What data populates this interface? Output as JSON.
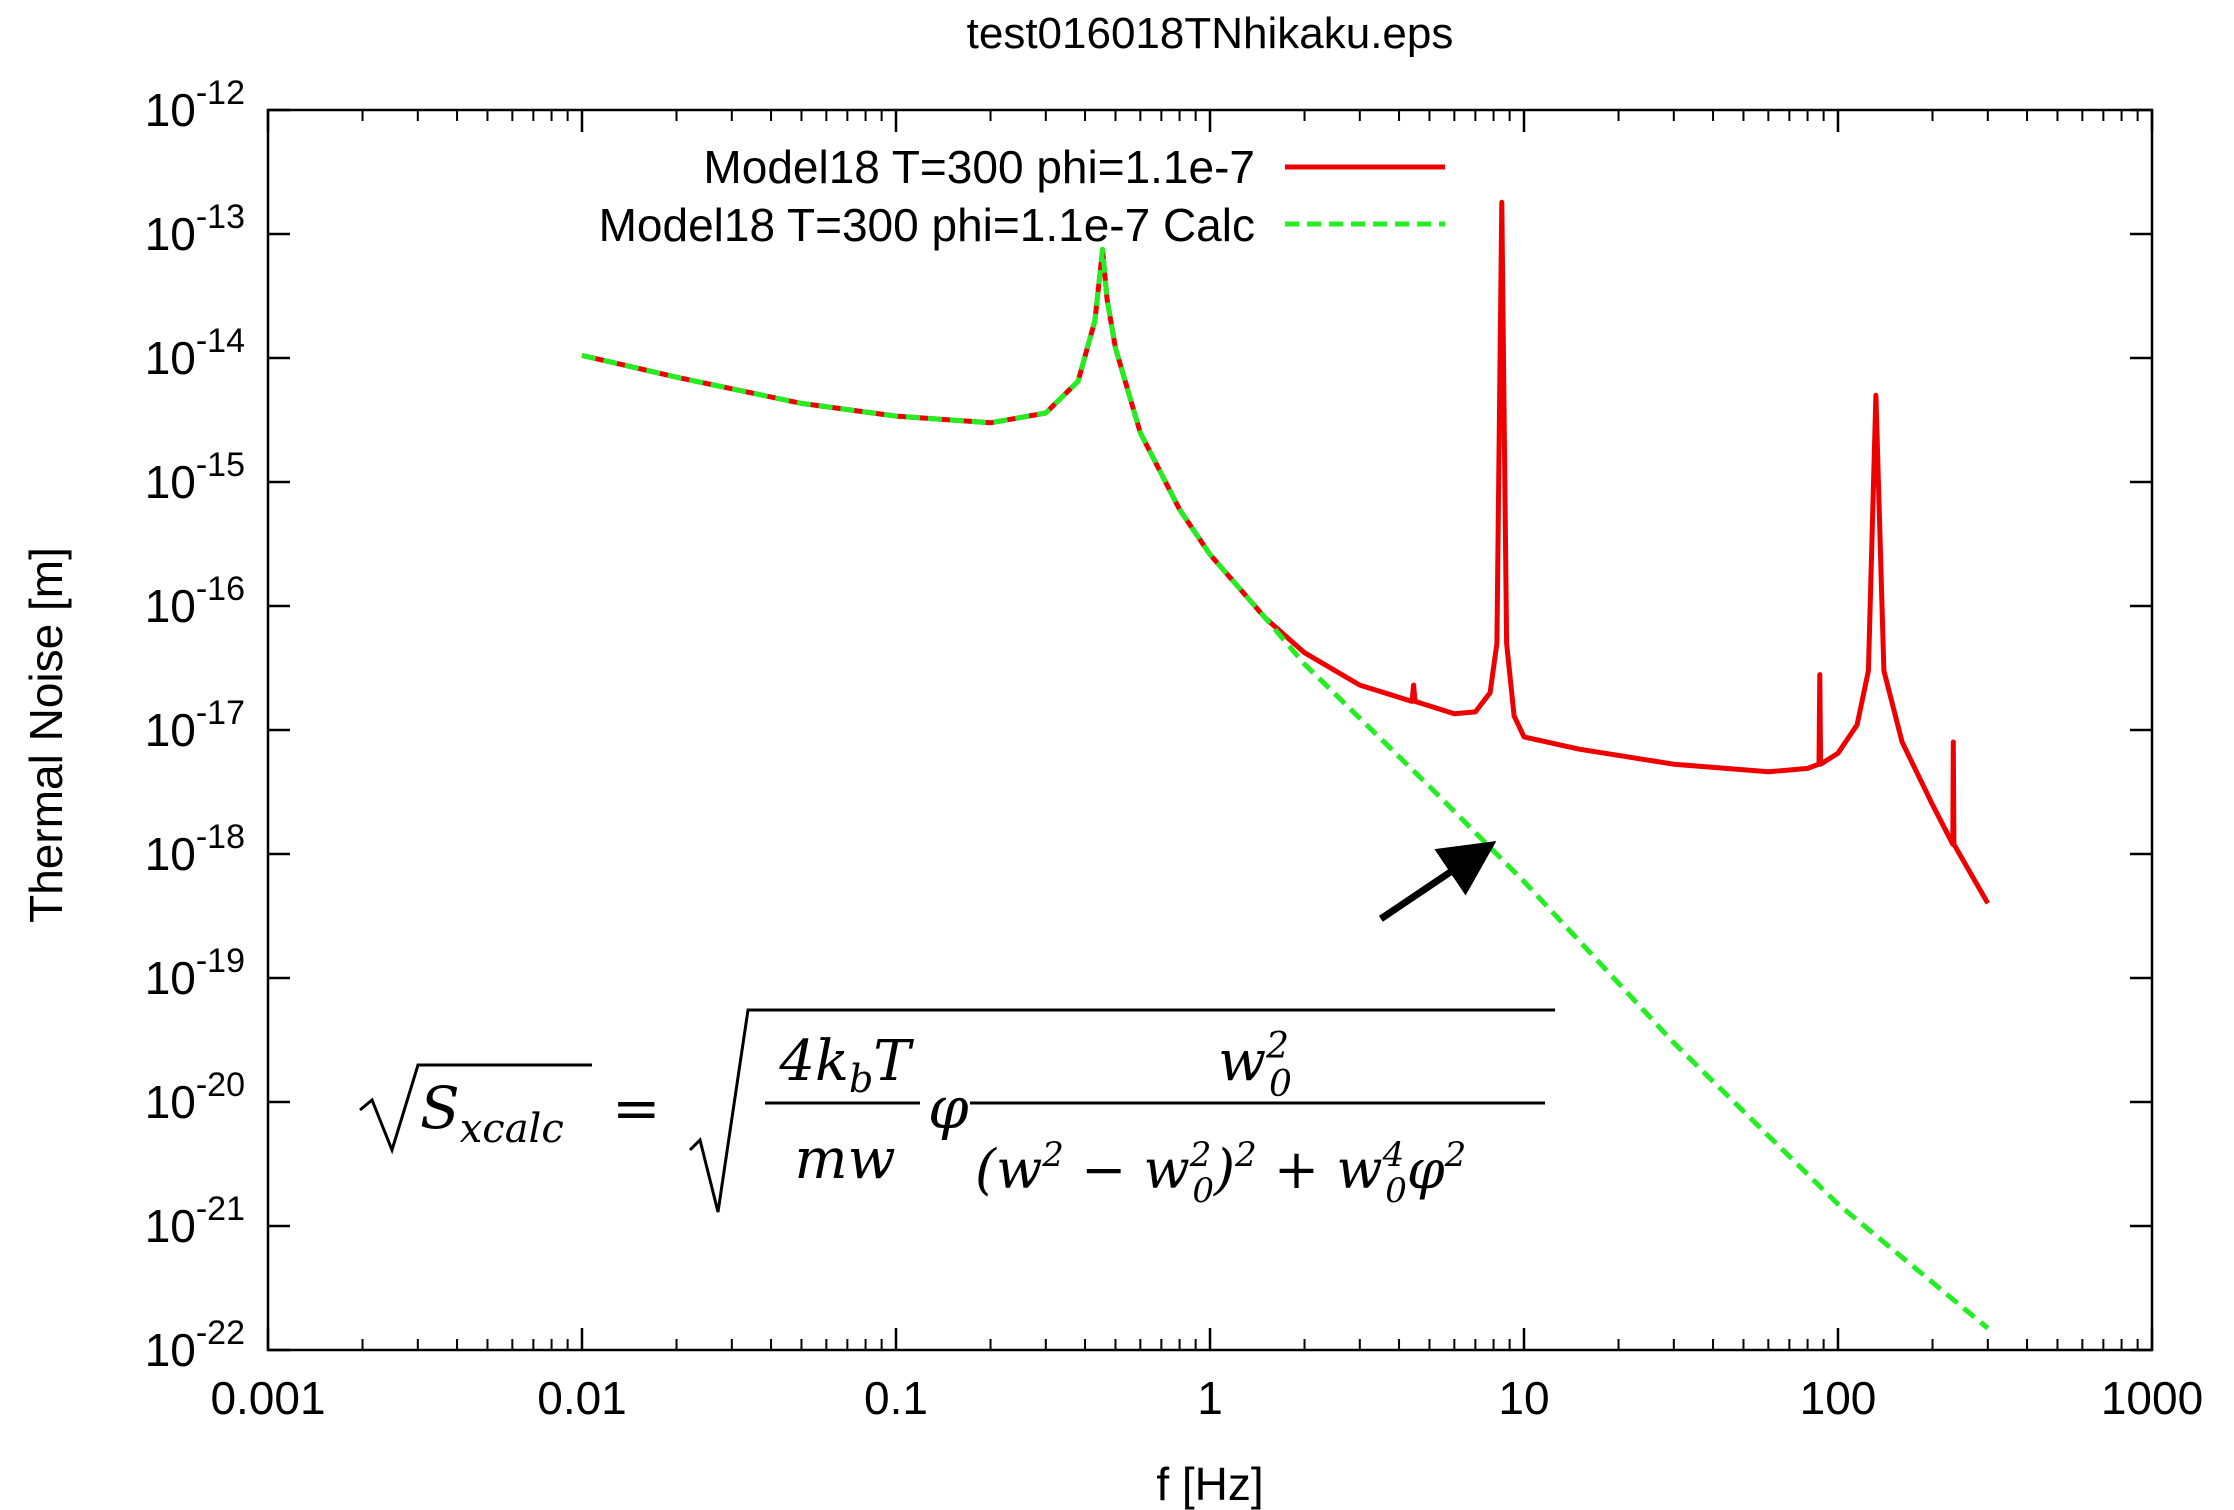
{
  "chart_data": {
    "type": "line",
    "title": "test016018TNhikaku.eps",
    "xlabel": "f [Hz]",
    "ylabel": "Thermal Noise [m]",
    "x_scale": "log",
    "y_scale": "log",
    "xlim": [
      0.001,
      1000
    ],
    "ylim": [
      1e-22,
      1e-12
    ],
    "x_ticks": [
      {
        "value": 0.001,
        "label": "0.001"
      },
      {
        "value": 0.01,
        "label": "0.01"
      },
      {
        "value": 0.1,
        "label": "0.1"
      },
      {
        "value": 1,
        "label": "1"
      },
      {
        "value": 10,
        "label": "10"
      },
      {
        "value": 100,
        "label": "100"
      },
      {
        "value": 1000,
        "label": "1000"
      }
    ],
    "y_ticks": [
      {
        "value": 1e-12,
        "base": "10",
        "exp": "-12"
      },
      {
        "value": 1e-13,
        "base": "10",
        "exp": "-13"
      },
      {
        "value": 1e-14,
        "base": "10",
        "exp": "-14"
      },
      {
        "value": 1e-15,
        "base": "10",
        "exp": "-15"
      },
      {
        "value": 1e-16,
        "base": "10",
        "exp": "-16"
      },
      {
        "value": 1e-17,
        "base": "10",
        "exp": "-17"
      },
      {
        "value": 1e-18,
        "base": "10",
        "exp": "-18"
      },
      {
        "value": 1e-19,
        "base": "10",
        "exp": "-19"
      },
      {
        "value": 1e-20,
        "base": "10",
        "exp": "-20"
      },
      {
        "value": 1e-21,
        "base": "10",
        "exp": "-21"
      },
      {
        "value": 1e-22,
        "base": "10",
        "exp": "-22"
      }
    ],
    "grid": false,
    "legend_position": "top-center",
    "series": [
      {
        "name": "Model18 T=300 phi=1.1e-7",
        "color": "#ee0000",
        "style": "solid",
        "points": [
          [
            0.01,
            1.05e-14
          ],
          [
            0.02,
            7e-15
          ],
          [
            0.05,
            4.3e-15
          ],
          [
            0.1,
            3.4e-15
          ],
          [
            0.2,
            3e-15
          ],
          [
            0.3,
            3.6e-15
          ],
          [
            0.38,
            6.5e-15
          ],
          [
            0.43,
            2e-14
          ],
          [
            0.455,
            7.5e-14
          ],
          [
            0.47,
            3e-14
          ],
          [
            0.5,
            1.2e-14
          ],
          [
            0.6,
            2.5e-15
          ],
          [
            0.8,
            6e-16
          ],
          [
            1.0,
            2.6e-16
          ],
          [
            1.5,
            8e-17
          ],
          [
            2.0,
            4.2e-17
          ],
          [
            3.0,
            2.3e-17
          ],
          [
            4.4,
            1.7e-17
          ],
          [
            4.45,
            2.3e-17
          ],
          [
            4.5,
            1.7e-17
          ],
          [
            6.0,
            1.35e-17
          ],
          [
            7.0,
            1.4e-17
          ],
          [
            7.8,
            2e-17
          ],
          [
            8.2,
            5e-17
          ],
          [
            8.5,
            1.8e-13
          ],
          [
            8.8,
            5e-17
          ],
          [
            9.3,
            1.3e-17
          ],
          [
            10,
            8.8e-18
          ],
          [
            15,
            7e-18
          ],
          [
            30,
            5.3e-18
          ],
          [
            60,
            4.6e-18
          ],
          [
            80,
            4.9e-18
          ],
          [
            87,
            5.3e-18
          ],
          [
            87.5,
            2.8e-17
          ],
          [
            88,
            5.3e-18
          ],
          [
            100,
            6.5e-18
          ],
          [
            115,
            1.1e-17
          ],
          [
            125,
            3e-17
          ],
          [
            132,
            5e-15
          ],
          [
            140,
            3e-17
          ],
          [
            160,
            8e-18
          ],
          [
            200,
            2.5e-18
          ],
          [
            232,
            1.2e-18
          ],
          [
            233,
            8e-18
          ],
          [
            234,
            1.2e-18
          ],
          [
            300,
            4e-19
          ]
        ]
      },
      {
        "name": "Model18 T=300 phi=1.1e-7 Calc",
        "color": "#22ee22",
        "style": "dashed",
        "points": [
          [
            0.01,
            1.05e-14
          ],
          [
            0.02,
            7e-15
          ],
          [
            0.05,
            4.3e-15
          ],
          [
            0.1,
            3.4e-15
          ],
          [
            0.2,
            3e-15
          ],
          [
            0.3,
            3.6e-15
          ],
          [
            0.38,
            6.5e-15
          ],
          [
            0.43,
            2e-14
          ],
          [
            0.455,
            7.5e-14
          ],
          [
            0.47,
            3e-14
          ],
          [
            0.5,
            1.2e-14
          ],
          [
            0.6,
            2.5e-15
          ],
          [
            0.8,
            6e-16
          ],
          [
            1.0,
            2.6e-16
          ],
          [
            1.5,
            8e-17
          ],
          [
            2.0,
            3.4e-17
          ],
          [
            5,
            3.5e-18
          ],
          [
            10,
            6e-19
          ],
          [
            30,
            3e-20
          ],
          [
            100,
            1.5e-21
          ],
          [
            300,
            1.5e-22
          ]
        ]
      }
    ],
    "annotations": {
      "arrow": {
        "from": [
          3.5,
          3e-19
        ],
        "to": [
          7.5,
          1.1e-18
        ]
      },
      "formula": {
        "lhs": "S",
        "lhs_sub": "xcalc",
        "equals": "=",
        "frac1_num": "4k",
        "frac1_num_sub": "b",
        "frac1_num_tail": "T",
        "frac1_den": "mw",
        "phi": "φ",
        "frac2_num": "w",
        "frac2_num_sup": "2",
        "frac2_num_sub": "0",
        "frac2_den_a": "(w",
        "frac2_den_a_sup": "2",
        "frac2_den_b": " − w",
        "frac2_den_b_sup": "2",
        "frac2_den_b_sub": "0",
        "frac2_den_c": ")",
        "frac2_den_c_sup": "2",
        "frac2_den_d": " + w",
        "frac2_den_d_sup": "4",
        "frac2_den_d_sub": "0",
        "frac2_den_e": "φ",
        "frac2_den_e_sup": "2"
      }
    }
  }
}
